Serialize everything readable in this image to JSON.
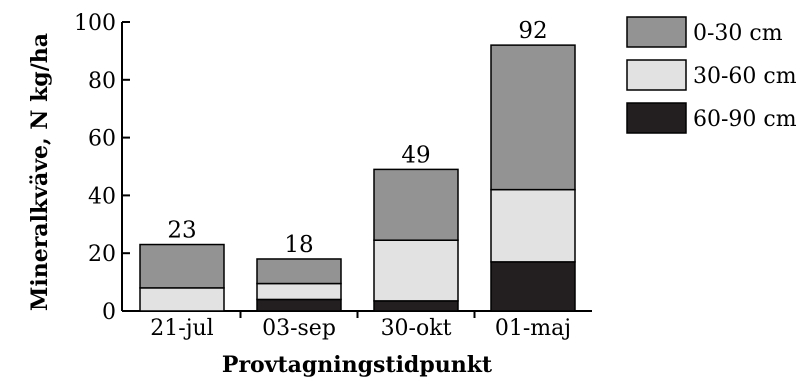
{
  "chart_data": {
    "type": "bar",
    "stacked": true,
    "categories": [
      "21-jul",
      "03-sep",
      "30-okt",
      "01-maj"
    ],
    "series": [
      {
        "name": "60-90 cm",
        "color": "#231f20",
        "values": [
          0,
          4,
          3.5,
          17
        ]
      },
      {
        "name": "30-60 cm",
        "color": "#e2e2e2",
        "values": [
          8,
          5.5,
          21,
          25
        ]
      },
      {
        "name": "0-30 cm",
        "color": "#939393",
        "values": [
          15,
          8.5,
          24.5,
          50
        ]
      }
    ],
    "totals": [
      "23",
      "18",
      "49",
      "92"
    ],
    "xlabel": "Provtagningstidpunkt",
    "ylabel": "Mineralkväve, N kg/ha",
    "ylim": [
      0,
      100
    ],
    "yticks": [
      "0",
      "20",
      "40",
      "60",
      "80",
      "100"
    ],
    "grid": false,
    "legend_position": "right",
    "legend_order": [
      "0-30 cm",
      "30-60 cm",
      "60-90 cm"
    ]
  }
}
